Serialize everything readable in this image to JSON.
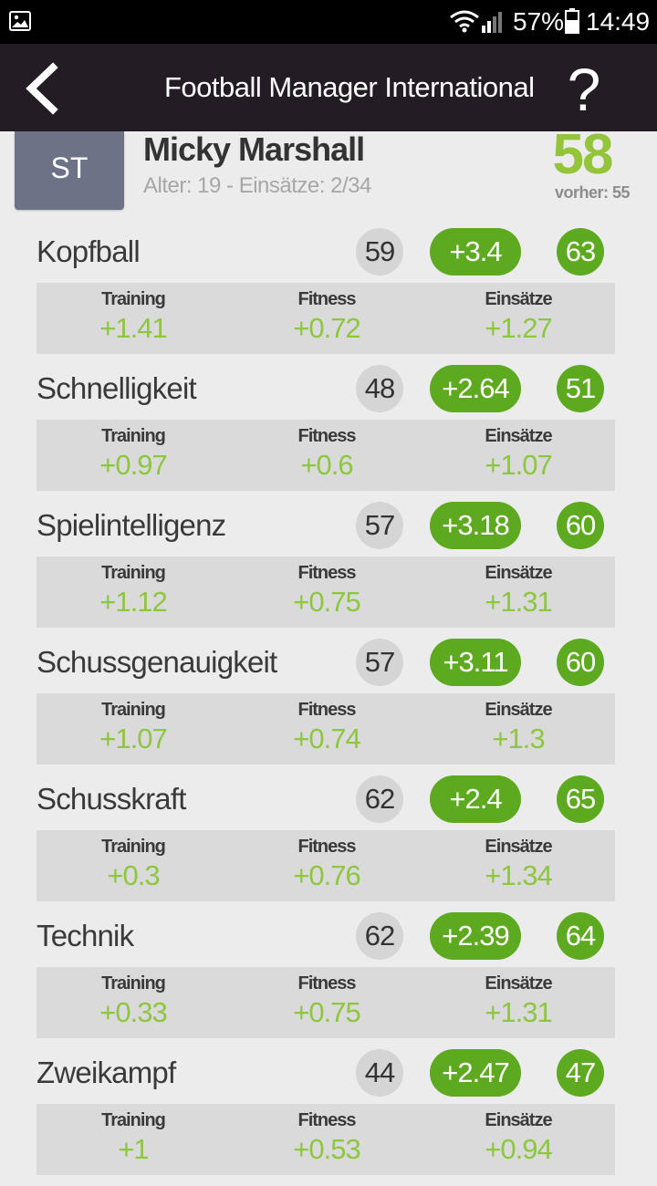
{
  "status_bar": {
    "battery": "57%",
    "time": "14:49",
    "icons": [
      "image-icon",
      "wifi-icon",
      "signal-icon",
      "battery-icon"
    ]
  },
  "app_bar": {
    "title": "Football Manager International",
    "help_label": "?"
  },
  "player": {
    "position": "ST",
    "name": "Micky Marshall",
    "meta": "Alter: 19 - Einsätze: 2/34",
    "overall": "58",
    "previous": "vorher: 55"
  },
  "labels": {
    "training": "Training",
    "fitness": "Fitness",
    "matches": "Einsätze"
  },
  "attributes": [
    {
      "name": "Kopfball",
      "old": "59",
      "delta": "+3.4",
      "new": "63",
      "training": "+1.41",
      "fitness": "+0.72",
      "matches": "+1.27"
    },
    {
      "name": "Schnelligkeit",
      "old": "48",
      "delta": "+2.64",
      "new": "51",
      "training": "+0.97",
      "fitness": "+0.6",
      "matches": "+1.07"
    },
    {
      "name": "Spielintelligenz",
      "old": "57",
      "delta": "+3.18",
      "new": "60",
      "training": "+1.12",
      "fitness": "+0.75",
      "matches": "+1.31"
    },
    {
      "name": "Schussgenauigkeit",
      "old": "57",
      "delta": "+3.11",
      "new": "60",
      "training": "+1.07",
      "fitness": "+0.74",
      "matches": "+1.3"
    },
    {
      "name": "Schusskraft",
      "old": "62",
      "delta": "+2.4",
      "new": "65",
      "training": "+0.3",
      "fitness": "+0.76",
      "matches": "+1.34"
    },
    {
      "name": "Technik",
      "old": "62",
      "delta": "+2.39",
      "new": "64",
      "training": "+0.33",
      "fitness": "+0.75",
      "matches": "+1.31"
    },
    {
      "name": "Zweikampf",
      "old": "44",
      "delta": "+2.47",
      "new": "47",
      "training": "+1",
      "fitness": "+0.53",
      "matches": "+0.94"
    }
  ],
  "colors": {
    "accent_green": "#5da91f",
    "value_green": "#8dc63f",
    "overall_green": "#93c43a",
    "app_bar": "#231c24",
    "position_badge": "#6d7286"
  }
}
